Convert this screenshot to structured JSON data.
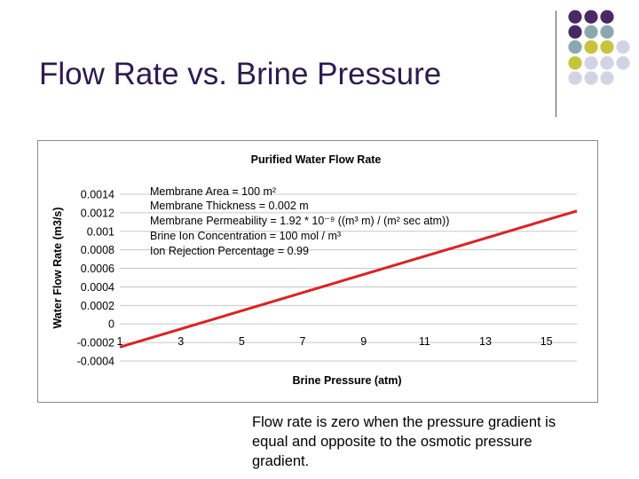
{
  "slide": {
    "title": "Flow Rate vs. Brine Pressure",
    "caption_lines": [
      "Flow rate is zero when the pressure gradient is",
      "equal and opposite to the osmotic pressure",
      "gradient."
    ]
  },
  "decoration": {
    "dot_colors": {
      "purple": "#4a2a66",
      "teal": "#8aa8ad",
      "olive": "#c5c43a",
      "lavender": "#d4d3e6"
    },
    "dot_grid": [
      [
        "purple",
        "purple",
        "purple",
        null
      ],
      [
        "purple",
        "teal",
        "teal",
        null
      ],
      [
        "teal",
        "olive",
        "olive",
        "lavender"
      ],
      [
        "olive",
        "lavender",
        "lavender",
        "lavender"
      ],
      [
        "lavender",
        "lavender",
        "lavender",
        null
      ]
    ]
  },
  "chart_data": {
    "type": "line",
    "title": "Purified Water Flow Rate",
    "xlabel": "Brine Pressure (atm)",
    "ylabel": "Water Flow Rate (m3/s)",
    "x_ticks": [
      "1",
      "3",
      "5",
      "7",
      "9",
      "11",
      "13",
      "15"
    ],
    "y_ticks": [
      "0.0014",
      "0.0012",
      "0.001",
      "0.0008",
      "0.0006",
      "0.0004",
      "0.0002",
      "0",
      "-0.0002",
      "-0.0004"
    ],
    "xlim": [
      1,
      16
    ],
    "ylim": [
      -0.0004,
      0.0014
    ],
    "grid": true,
    "line_color": "#e02020",
    "series": [
      {
        "x": [
          1,
          16
        ],
        "y": [
          -0.00025,
          0.00122
        ]
      }
    ],
    "annotation_lines": [
      "Membrane Area = 100 m²",
      "Membrane Thickness = 0.002 m",
      "Membrane Permeability = 1.92 * 10⁻⁹ ((m³ m) / (m² sec atm))",
      "Brine Ion Concentration = 100 mol / m³",
      "Ion Rejection Percentage = 0.99"
    ]
  }
}
